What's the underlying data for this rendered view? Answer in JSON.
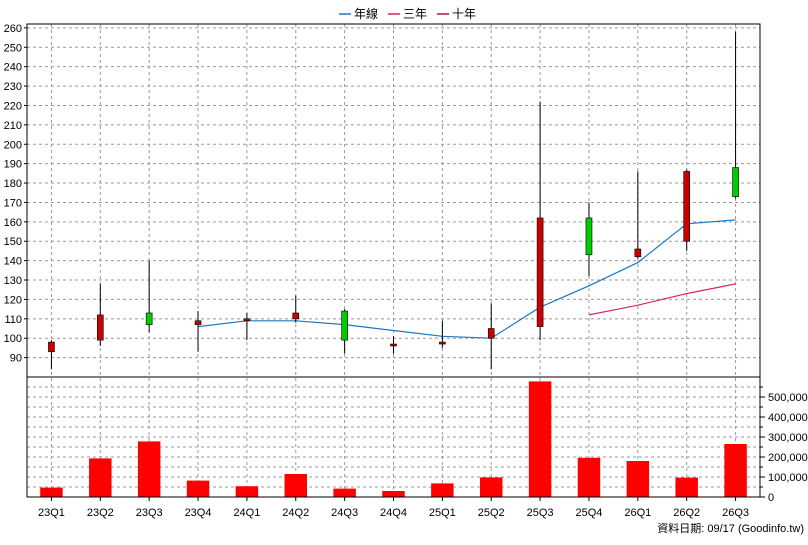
{
  "chart_data": {
    "type": "candlestick",
    "legend": [
      {
        "label": "年線",
        "color": "#1f77c4"
      },
      {
        "label": "三年",
        "color": "#e0206a"
      },
      {
        "label": "十年",
        "color": "#b01050"
      }
    ],
    "categories": [
      "23Q1",
      "23Q2",
      "23Q3",
      "23Q4",
      "24Q1",
      "24Q2",
      "24Q3",
      "24Q4",
      "25Q1",
      "25Q2",
      "25Q3",
      "25Q4",
      "26Q1",
      "26Q2",
      "26Q3"
    ],
    "price_axis": {
      "min": 80,
      "max": 262,
      "ticks": [
        90,
        100,
        110,
        120,
        130,
        140,
        150,
        160,
        170,
        180,
        190,
        200,
        210,
        220,
        230,
        240,
        250,
        260
      ]
    },
    "volume_axis": {
      "min": 0,
      "max": 600000,
      "ticks": [
        0,
        100000,
        200000,
        300000,
        400000,
        500000
      ],
      "tick_labels": [
        "0",
        "100,000",
        "200,000",
        "300,000",
        "400,000",
        "500,000"
      ]
    },
    "candles": [
      {
        "open": 98,
        "high": 99,
        "low": 84,
        "close": 93
      },
      {
        "open": 112,
        "high": 128,
        "low": 96,
        "close": 99
      },
      {
        "open": 107,
        "high": 140,
        "low": 103,
        "close": 113
      },
      {
        "open": 109,
        "high": 114,
        "low": 93,
        "close": 107
      },
      {
        "open": 110,
        "high": 113,
        "low": 99,
        "close": 109
      },
      {
        "open": 113,
        "high": 122,
        "low": 108,
        "close": 110
      },
      {
        "open": 99,
        "high": 115,
        "low": 92,
        "close": 114
      },
      {
        "open": 97,
        "high": 101,
        "low": 92,
        "close": 96
      },
      {
        "open": 98,
        "high": 109,
        "low": 95,
        "close": 97
      },
      {
        "open": 105,
        "high": 118,
        "low": 84,
        "close": 100
      },
      {
        "open": 162,
        "high": 222,
        "low": 99,
        "close": 106
      },
      {
        "open": 143,
        "high": 170,
        "low": 132,
        "close": 162
      },
      {
        "open": 146,
        "high": 186,
        "low": 141,
        "close": 142
      },
      {
        "open": 186,
        "high": 187,
        "low": 145,
        "close": 150
      },
      {
        "open": 173,
        "high": 258,
        "low": 172,
        "close": 188
      }
    ],
    "annual_line": [
      null,
      null,
      null,
      106,
      109,
      109,
      107,
      104,
      101,
      100,
      116,
      127,
      139,
      159,
      161
    ],
    "three_year_line": [
      null,
      null,
      null,
      null,
      null,
      null,
      null,
      null,
      null,
      null,
      null,
      112,
      117,
      123,
      128
    ],
    "ten_year_line": [],
    "volume": [
      47000,
      193000,
      278000,
      82000,
      54000,
      115000,
      42000,
      30000,
      68000,
      98000,
      578000,
      196000,
      180000,
      97000,
      265000
    ],
    "up_color": "#00cc00",
    "down_color": "#cc0000",
    "volume_color": "#ff0000",
    "grid": true,
    "footer": "資料日期: 09/17  (Goodinfo.tw)"
  }
}
